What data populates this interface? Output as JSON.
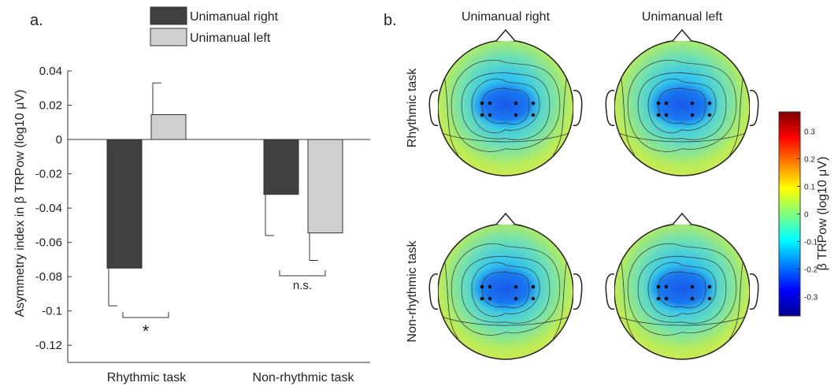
{
  "panel_a_label": "a.",
  "panel_b_label": "b.",
  "chart_data": [
    {
      "type": "bar",
      "title": "",
      "ylabel": "Asymmetry index in β TRPow (log10 μV)",
      "xlabel": "",
      "categories": [
        "Rhythmic task",
        "Non-rhythmic task"
      ],
      "series": [
        {
          "name": "Unimanual right",
          "values": [
            -0.075,
            -0.032
          ],
          "errors": [
            0.022,
            0.024
          ],
          "color": "#404040"
        },
        {
          "name": "Unimanual left",
          "values": [
            0.0145,
            -0.0545
          ],
          "errors": [
            0.0185,
            0.016
          ],
          "color": "#d0d0d0"
        }
      ],
      "ylim": [
        -0.13,
        0.04
      ],
      "yticks": [
        0.04,
        0.02,
        0,
        -0.02,
        -0.04,
        -0.06,
        -0.08,
        -0.1,
        -0.12
      ],
      "ytick_labels": [
        "0.04",
        "0.02",
        "0",
        "-0.02",
        "-0.04",
        "-0.06",
        "-0.08",
        "-0.1",
        "-0.12"
      ],
      "significance": [
        "*",
        "n.s."
      ],
      "grid": false,
      "legend_position": "top"
    },
    {
      "type": "heatmap",
      "columns": [
        "Unimanual right",
        "Unimanual left"
      ],
      "rows": [
        "Rhythmic task",
        "Non-rhythmic task"
      ],
      "colorbar_label": "β TRPow (log10 μV)",
      "colorbar_range": [
        -0.37,
        0.37
      ],
      "colorbar_ticks": [
        0.3,
        0.2,
        0.1,
        0,
        -0.1,
        -0.2,
        -0.3
      ],
      "colorbar_tick_labels": [
        "0.3",
        "0.2",
        "0.1",
        "0",
        "-0.1",
        "-0.2",
        "-0.3"
      ],
      "colormap": "jet"
    }
  ]
}
